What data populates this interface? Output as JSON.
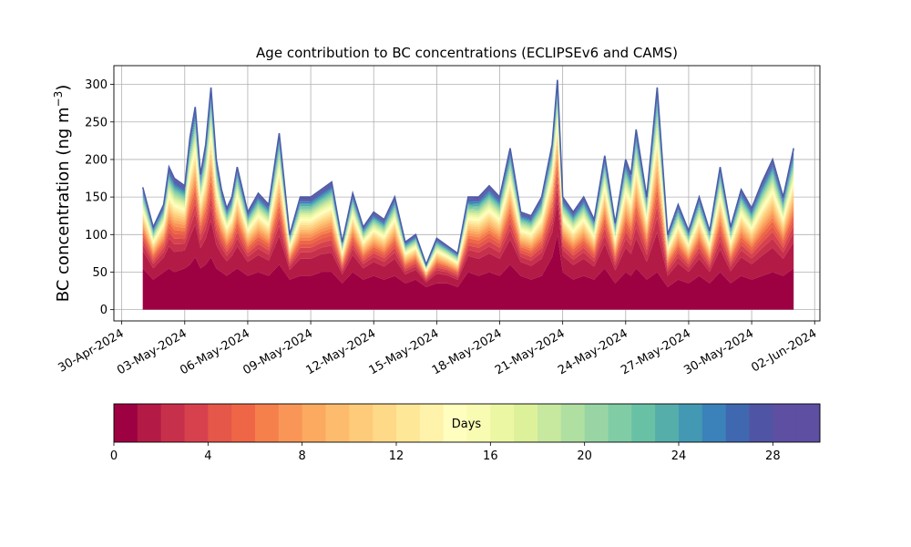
{
  "chart_data": {
    "type": "area",
    "title": "Age contribution to BC concentrations (ECLIPSEv6 and CAMS)",
    "ylabel_main": "BC concentration (ng m",
    "ylabel_sup": "−3",
    "ylabel_close": ")",
    "xlabel": "",
    "x_axis": {
      "type": "date",
      "range": [
        "2024-04-29T15:00",
        "2024-06-02T06:00"
      ],
      "ticks": [
        "2024-04-30",
        "2024-05-03",
        "2024-05-06",
        "2024-05-09",
        "2024-05-12",
        "2024-05-15",
        "2024-05-18",
        "2024-05-21",
        "2024-05-24",
        "2024-05-27",
        "2024-05-30",
        "2024-06-02"
      ],
      "tick_labels": [
        "30-Apr-2024",
        "03-May-2024",
        "06-May-2024",
        "09-May-2024",
        "12-May-2024",
        "15-May-2024",
        "18-May-2024",
        "21-May-2024",
        "24-May-2024",
        "27-May-2024",
        "30-May-2024",
        "02-Jun-2024"
      ]
    },
    "y_axis": {
      "range": [
        -15,
        325
      ],
      "ticks": [
        0,
        50,
        100,
        150,
        200,
        250,
        300
      ],
      "tick_labels": [
        "0",
        "50",
        "100",
        "150",
        "200",
        "250",
        "300"
      ]
    },
    "grid": true,
    "series_total": {
      "name": "",
      "dates": [
        "2024-05-01T00:00",
        "2024-05-01T12:00",
        "2024-05-02T00:00",
        "2024-05-02T06:00",
        "2024-05-02T12:00",
        "2024-05-03T00:00",
        "2024-05-03T06:00",
        "2024-05-03T12:00",
        "2024-05-03T18:00",
        "2024-05-04T00:00",
        "2024-05-04T06:00",
        "2024-05-04T12:00",
        "2024-05-04T18:00",
        "2024-05-05T00:00",
        "2024-05-05T06:00",
        "2024-05-05T12:00",
        "2024-05-06T00:00",
        "2024-05-06T12:00",
        "2024-05-07T00:00",
        "2024-05-07T12:00",
        "2024-05-08T00:00",
        "2024-05-08T12:00",
        "2024-05-09T00:00",
        "2024-05-09T12:00",
        "2024-05-10T00:00",
        "2024-05-10T12:00",
        "2024-05-11T00:00",
        "2024-05-11T12:00",
        "2024-05-12T00:00",
        "2024-05-12T12:00",
        "2024-05-13T00:00",
        "2024-05-13T12:00",
        "2024-05-14T00:00",
        "2024-05-14T12:00",
        "2024-05-15T00:00",
        "2024-05-15T12:00",
        "2024-05-16T00:00",
        "2024-05-16T12:00",
        "2024-05-17T00:00",
        "2024-05-17T12:00",
        "2024-05-18T00:00",
        "2024-05-18T12:00",
        "2024-05-19T00:00",
        "2024-05-19T12:00",
        "2024-05-20T00:00",
        "2024-05-20T12:00",
        "2024-05-20T18:00",
        "2024-05-21T00:00",
        "2024-05-21T12:00",
        "2024-05-22T00:00",
        "2024-05-22T12:00",
        "2024-05-23T00:00",
        "2024-05-23T12:00",
        "2024-05-24T00:00",
        "2024-05-24T06:00",
        "2024-05-24T12:00",
        "2024-05-25T00:00",
        "2024-05-25T12:00",
        "2024-05-26T00:00",
        "2024-05-26T12:00",
        "2024-05-27T00:00",
        "2024-05-27T12:00",
        "2024-05-28T00:00",
        "2024-05-28T12:00",
        "2024-05-29T00:00",
        "2024-05-29T12:00",
        "2024-05-30T00:00",
        "2024-05-30T12:00",
        "2024-05-31T00:00",
        "2024-05-31T12:00",
        "2024-06-01T00:00"
      ],
      "values": [
        163,
        110,
        140,
        190,
        175,
        165,
        230,
        270,
        180,
        220,
        296,
        200,
        160,
        135,
        150,
        190,
        130,
        155,
        140,
        235,
        100,
        150,
        150,
        160,
        170,
        90,
        155,
        110,
        130,
        120,
        150,
        90,
        100,
        60,
        95,
        85,
        75,
        150,
        150,
        165,
        150,
        215,
        130,
        125,
        150,
        220,
        306,
        150,
        130,
        150,
        120,
        205,
        115,
        200,
        180,
        240,
        150,
        296,
        100,
        140,
        105,
        150,
        105,
        190,
        110,
        160,
        135,
        170,
        200,
        150,
        215
      ]
    },
    "series_base": {
      "name": "",
      "values": [
        55,
        40,
        50,
        55,
        50,
        55,
        60,
        70,
        55,
        60,
        70,
        55,
        50,
        45,
        50,
        55,
        45,
        50,
        45,
        60,
        40,
        45,
        45,
        50,
        50,
        35,
        50,
        40,
        45,
        40,
        45,
        35,
        40,
        30,
        35,
        35,
        30,
        50,
        45,
        50,
        45,
        60,
        45,
        40,
        45,
        70,
        100,
        50,
        40,
        45,
        40,
        55,
        35,
        50,
        45,
        55,
        40,
        50,
        30,
        40,
        35,
        45,
        35,
        50,
        35,
        45,
        40,
        45,
        50,
        45,
        55
      ]
    },
    "colorbar": {
      "label": "Days",
      "min": 0,
      "max": 30,
      "ticks": [
        0,
        4,
        8,
        12,
        16,
        20,
        24,
        28
      ],
      "tick_labels": [
        "0",
        "4",
        "8",
        "12",
        "16",
        "20",
        "24",
        "28"
      ],
      "colormap": "Spectral",
      "colors": [
        "#9e0142",
        "#b31b46",
        "#c7304b",
        "#d7414e",
        "#e55749",
        "#ee6645",
        "#f6804c",
        "#f99657",
        "#fcaa5f",
        "#fdbc6d",
        "#fdcb7a",
        "#fed988",
        "#fee797",
        "#fff2aa",
        "#fffebe",
        "#f7fcb2",
        "#ecf7a3",
        "#dcf199",
        "#c6e89f",
        "#b0dfa2",
        "#99d5a4",
        "#80cca5",
        "#69c1a5",
        "#55aeaa",
        "#4399b3",
        "#3a82b9",
        "#4068b0",
        "#4f55a4",
        "#5e4fa2",
        "#5e4fa2"
      ]
    }
  }
}
